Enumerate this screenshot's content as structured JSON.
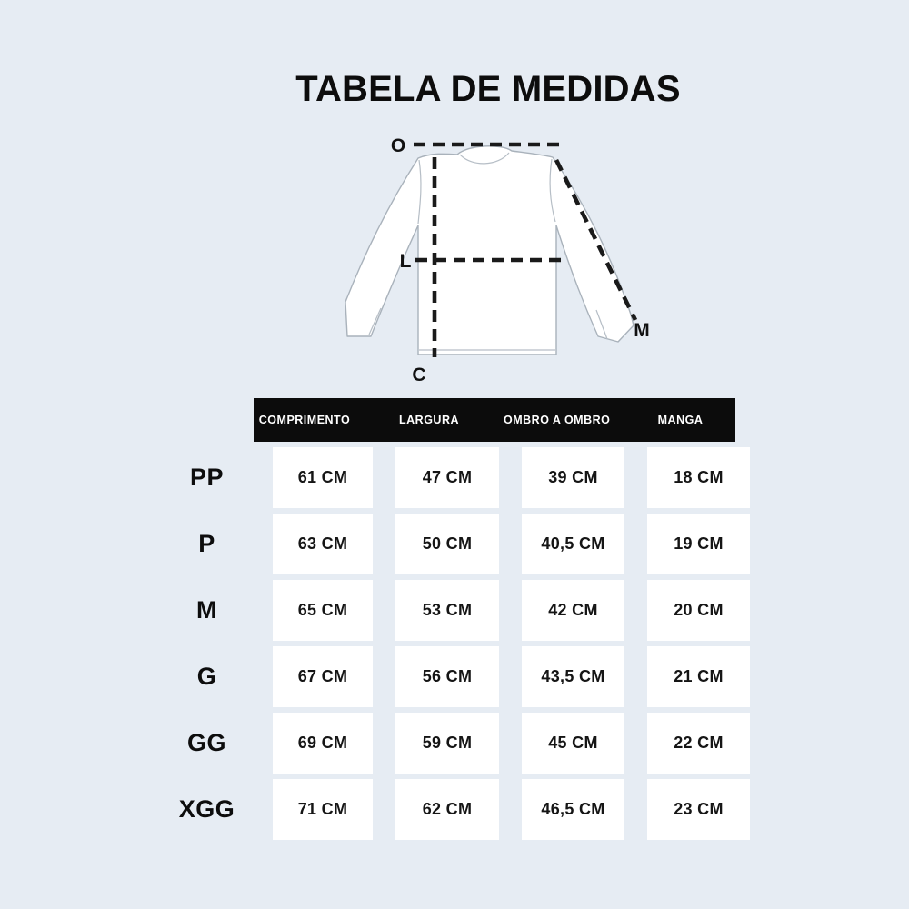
{
  "title": "TABELA DE MEDIDAS",
  "colors": {
    "background": "#e6ecf3",
    "header_bg": "#0c0c0c",
    "header_text": "#ffffff",
    "cell_bg": "#ffffff",
    "text": "#141414",
    "garment_outline": "#a9b2bb"
  },
  "diagram": {
    "garment": "long-sleeve-shirt",
    "labels": {
      "shoulder_line": "O",
      "width_line": "L",
      "sleeve_line": "M",
      "length_line": "C"
    }
  },
  "table": {
    "columns": [
      "COMPRIMENTO",
      "LARGURA",
      "OMBRO A OMBRO",
      "MANGA"
    ],
    "rows": [
      {
        "size": "PP",
        "values": [
          "61 CM",
          "47 CM",
          "39 CM",
          "18 CM"
        ]
      },
      {
        "size": "P",
        "values": [
          "63 CM",
          "50 CM",
          "40,5 CM",
          "19 CM"
        ]
      },
      {
        "size": "M",
        "values": [
          "65 CM",
          "53 CM",
          "42 CM",
          "20 CM"
        ]
      },
      {
        "size": "G",
        "values": [
          "67 CM",
          "56 CM",
          "43,5 CM",
          "21 CM"
        ]
      },
      {
        "size": "GG",
        "values": [
          "69 CM",
          "59 CM",
          "45 CM",
          "22 CM"
        ]
      },
      {
        "size": "XGG",
        "values": [
          "71 CM",
          "62 CM",
          "46,5 CM",
          "23 CM"
        ]
      }
    ]
  },
  "chart_data": {
    "type": "table",
    "title": "TABELA DE MEDIDAS",
    "unit": "CM",
    "columns": [
      "",
      "COMPRIMENTO",
      "LARGURA",
      "OMBRO A OMBRO",
      "MANGA"
    ],
    "rows": [
      [
        "PP",
        61,
        47,
        39,
        18
      ],
      [
        "P",
        63,
        50,
        40.5,
        19
      ],
      [
        "M",
        65,
        53,
        42,
        20
      ],
      [
        "G",
        67,
        56,
        43.5,
        21
      ],
      [
        "GG",
        69,
        59,
        45,
        22
      ],
      [
        "XGG",
        71,
        62,
        46.5,
        23
      ]
    ]
  }
}
